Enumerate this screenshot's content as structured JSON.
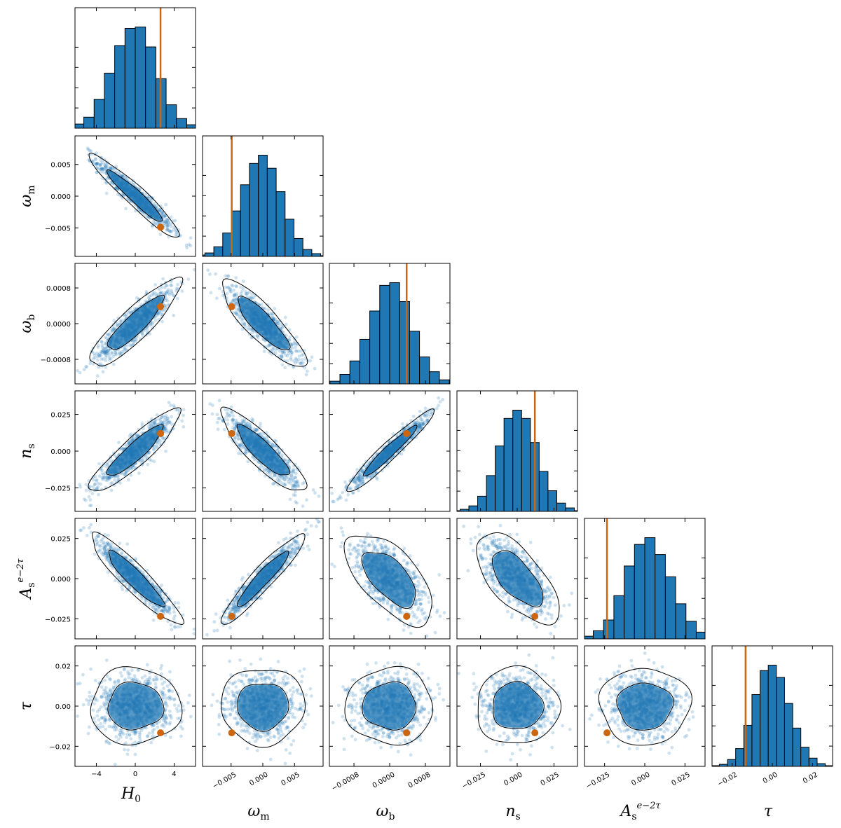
{
  "chart_data": {
    "type": "scatter",
    "description_kind": "corner",
    "parameters": [
      {
        "key": "H0",
        "label": "H",
        "label_sub": "0",
        "label_sup": "",
        "range": [
          -6.2,
          6.2
        ],
        "ticks": [
          -4,
          0,
          4
        ],
        "tick_labels": [
          "−4",
          "0",
          "4"
        ],
        "sigma": 1.9,
        "truth": 2.6
      },
      {
        "key": "omega_m",
        "label": "ω",
        "label_sub": "m",
        "label_sup": "",
        "range": [
          -0.0095,
          0.0095
        ],
        "ticks": [
          -0.005,
          0.0,
          0.005
        ],
        "tick_labels": [
          "−0.005",
          "0.000",
          "0.005"
        ],
        "sigma": 0.0027,
        "truth": -0.0049
      },
      {
        "key": "omega_b",
        "label": "ω",
        "label_sub": "b",
        "label_sup": "",
        "range": [
          -0.00135,
          0.00135
        ],
        "ticks": [
          -0.0008,
          0.0,
          0.0008
        ],
        "tick_labels": [
          "−0.0008",
          "0.0000",
          "0.0008"
        ],
        "sigma": 0.0004,
        "truth": 0.00038
      },
      {
        "key": "n_s",
        "label": "n",
        "label_sub": "s",
        "label_sup": "",
        "range": [
          -0.041,
          0.041
        ],
        "ticks": [
          -0.025,
          0.0,
          0.025
        ],
        "tick_labels": [
          "−0.025",
          "0.000",
          "0.025"
        ],
        "sigma": 0.0115,
        "truth": 0.012
      },
      {
        "key": "As_e2tau",
        "label": "A",
        "label_sub": "s",
        "label_sup": "e−2τ",
        "range": [
          -0.0375,
          0.0375
        ],
        "ticks": [
          -0.025,
          0.0,
          0.025
        ],
        "tick_labels": [
          "−0.025",
          "0.000",
          "0.025"
        ],
        "sigma": 0.0115,
        "truth": -0.0235
      },
      {
        "key": "tau",
        "label": "τ",
        "label_sub": "",
        "label_sup": "",
        "range": [
          -0.03,
          0.03
        ],
        "ticks": [
          -0.02,
          0.0,
          0.02
        ],
        "tick_labels": [
          "−0.02",
          "0.00",
          "0.02"
        ],
        "sigma": 0.0078,
        "truth": -0.0133
      }
    ],
    "correlations": [
      [
        1.0,
        -0.95,
        0.88,
        0.9,
        -0.92,
        0.0
      ],
      [
        -0.95,
        1.0,
        -0.86,
        -0.87,
        0.94,
        0.0
      ],
      [
        0.88,
        -0.86,
        1.0,
        0.96,
        -0.62,
        0.0
      ],
      [
        0.9,
        -0.87,
        0.96,
        1.0,
        -0.65,
        0.0
      ],
      [
        -0.92,
        0.94,
        -0.62,
        -0.65,
        1.0,
        0.0
      ],
      [
        0.0,
        0.0,
        0.0,
        0.0,
        0.0,
        1.0
      ]
    ],
    "histograms": [
      [
        2,
        6,
        16,
        42,
        80,
        120,
        145,
        147,
        118,
        72,
        34,
        14,
        5,
        2
      ],
      [
        2,
        5,
        14,
        34,
        66,
        104,
        135,
        147,
        128,
        94,
        54,
        26,
        10,
        4,
        1
      ],
      [
        1,
        4,
        14,
        34,
        66,
        108,
        146,
        150,
        122,
        78,
        40,
        18,
        6,
        2
      ],
      [
        1,
        3,
        8,
        22,
        52,
        95,
        135,
        147,
        135,
        100,
        58,
        30,
        12,
        5,
        1
      ],
      [
        1,
        4,
        12,
        28,
        64,
        108,
        140,
        150,
        125,
        92,
        52,
        26,
        10,
        3
      ],
      [
        1,
        3,
        10,
        26,
        60,
        105,
        140,
        148,
        130,
        92,
        56,
        28,
        12,
        4,
        1
      ]
    ],
    "contour_levels": [
      "68%",
      "95%"
    ],
    "colors": {
      "samples": "#1f77b4",
      "hist_fill": "#1f77b4",
      "truth": "#cc6611",
      "contour": "#000000",
      "frame": "#000000"
    }
  }
}
